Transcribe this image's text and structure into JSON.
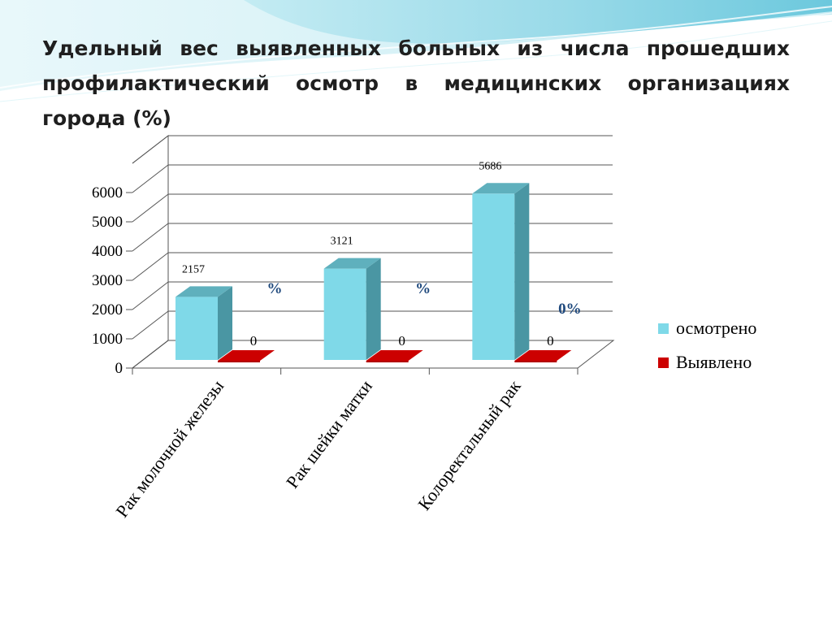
{
  "title": "Удельный вес выявленных больных из числа прошедших профилактический осмотр в медицинских организациях города (%)",
  "colors": {
    "osmotreno_front": "#7fd9e8",
    "osmotreno_side": "#4a96a3",
    "osmotreno_top": "#5fb0bd",
    "vyyavleno_front": "#cc0000",
    "vyyavleno_top": "#b30000",
    "percent_text": "#1f497d"
  },
  "chart_data": {
    "type": "bar",
    "categories": [
      "Рак молочной железы",
      "Рак шейки матки",
      "Колоректальный рак"
    ],
    "series": [
      {
        "name": "осмотрено",
        "values": [
          2157,
          3121,
          5686
        ]
      },
      {
        "name": "Выявлено",
        "values": [
          0,
          0,
          0
        ]
      }
    ],
    "data_labels": {
      "осмотрено": [
        "2157",
        "3121",
        "5686"
      ],
      "Выявлено": [
        "0",
        "0",
        "0"
      ]
    },
    "percent_labels": [
      "%",
      "%",
      "0%"
    ],
    "yticks": [
      "0",
      "1000",
      "2000",
      "3000",
      "4000",
      "5000",
      "6000"
    ],
    "ylim": [
      0,
      6000
    ],
    "grid": true,
    "legend_position": "right",
    "xlabel": "",
    "ylabel": ""
  }
}
